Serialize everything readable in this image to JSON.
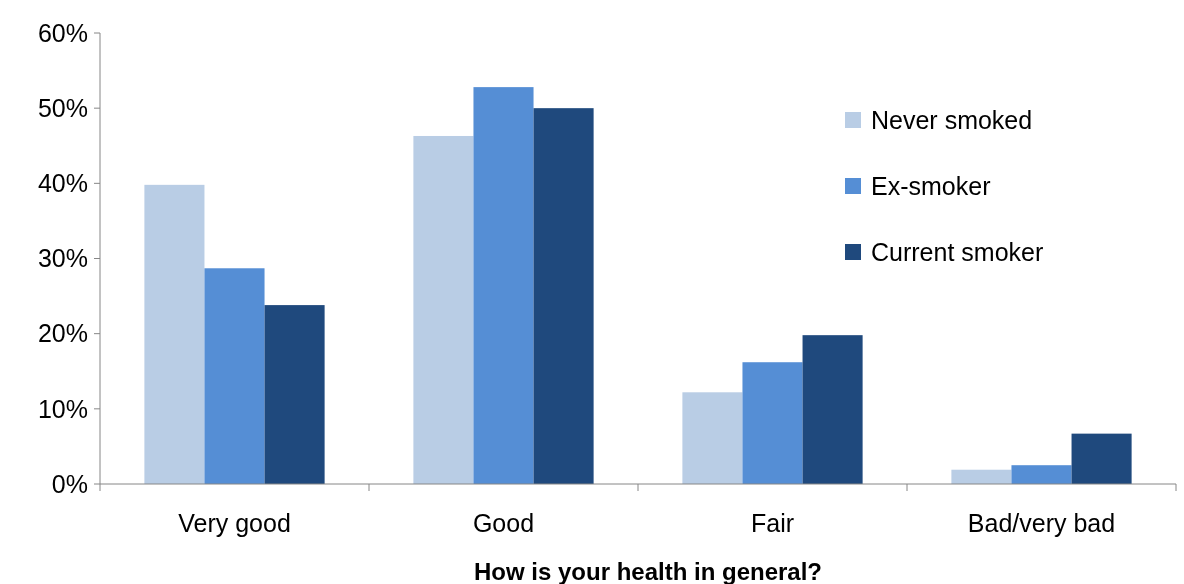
{
  "chart_data": {
    "type": "bar",
    "xlabel": "How is your health in general?",
    "categories": [
      "Very good",
      "Good",
      "Fair",
      "Bad/very bad"
    ],
    "series": [
      {
        "name": "Never smoked",
        "color": "#b9cde5",
        "values": [
          39.8,
          46.3,
          12.2,
          1.9
        ]
      },
      {
        "name": "Ex-smoker",
        "color": "#558ed5",
        "values": [
          28.7,
          52.8,
          16.2,
          2.5
        ]
      },
      {
        "name": "Current smoker",
        "color": "#1f497d",
        "values": [
          23.8,
          50.0,
          19.8,
          6.7
        ]
      }
    ],
    "ylim": [
      0,
      60
    ],
    "yticks": [
      {
        "value": 0,
        "label": "0%"
      },
      {
        "value": 10,
        "label": "10%"
      },
      {
        "value": 20,
        "label": "20%"
      },
      {
        "value": 30,
        "label": "30%"
      },
      {
        "value": 40,
        "label": "40%"
      },
      {
        "value": 50,
        "label": "50%"
      },
      {
        "value": 60,
        "label": "60%"
      }
    ],
    "grid": false,
    "legend": "top right"
  }
}
